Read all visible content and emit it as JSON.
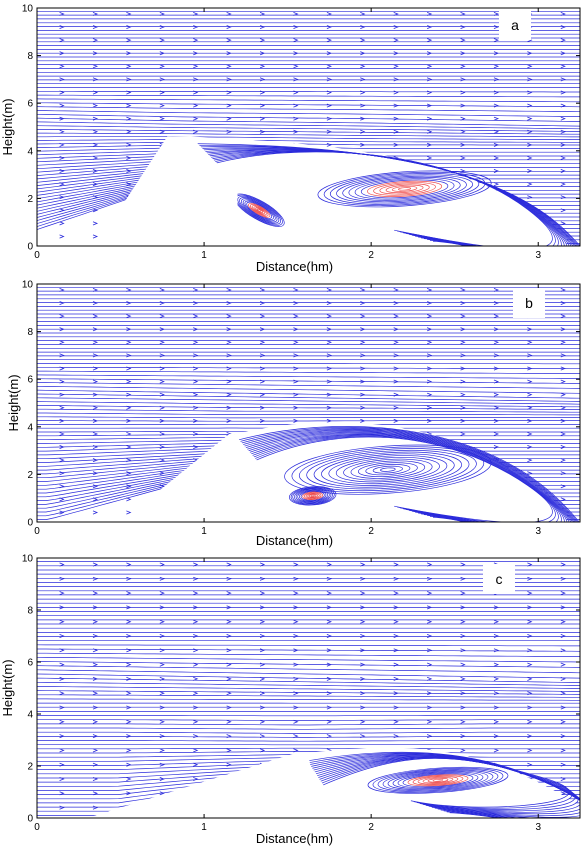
{
  "chart_data": [
    {
      "type": "streamline",
      "panel": "a",
      "xlabel": "Distance(hm)",
      "ylabel": "Height(m)",
      "xlim": [
        0,
        3.25
      ],
      "ylim": [
        0,
        10
      ],
      "xticks": [
        "0",
        "1",
        "2",
        "3"
      ],
      "yticks": [
        "0",
        "2",
        "4",
        "6",
        "8",
        "10"
      ],
      "obstacle": {
        "apex": [
          [
            0.78,
            4.6
          ],
          [
            0.92,
            4.6
          ]
        ],
        "left_base": 0.35,
        "right_base": 1.2,
        "right_base_height": 2.6
      },
      "shear_layer_height": 5.4,
      "vortices": [
        {
          "center": [
            1.33,
            1.5
          ],
          "rx": 0.17,
          "ry": 0.7,
          "highlight": true
        },
        {
          "center": [
            2.2,
            2.4
          ],
          "rx": 0.52,
          "ry": 1.3,
          "highlight": true
        }
      ]
    },
    {
      "type": "streamline",
      "panel": "b",
      "xlabel": "Distance(hm)",
      "ylabel": "Height(m)",
      "xlim": [
        0,
        3.25
      ],
      "ylim": [
        0,
        10
      ],
      "xticks": [
        "0",
        "1",
        "2",
        "3"
      ],
      "yticks": [
        "0",
        "2",
        "4",
        "6",
        "8",
        "10"
      ],
      "obstacle": {
        "apex": [
          [
            1.15,
            3.7
          ],
          [
            1.18,
            3.7
          ]
        ],
        "left_base": 0.5,
        "right_base": 1.45,
        "right_base_height": 1.5
      },
      "shear_layer_height": 5.5,
      "vortices": [
        {
          "center": [
            1.65,
            1.1
          ],
          "rx": 0.14,
          "ry": 0.7,
          "highlight": true
        },
        {
          "center": [
            2.1,
            2.2
          ],
          "rx": 0.62,
          "ry": 1.8,
          "highlight": false
        }
      ]
    },
    {
      "type": "streamline",
      "panel": "c",
      "xlabel": "Distance(hm)",
      "ylabel": "Height(m)",
      "xlim": [
        0,
        3.25
      ],
      "ylim": [
        0,
        10
      ],
      "xticks": [
        "0",
        "1",
        "2",
        "3"
      ],
      "yticks": [
        "0",
        "2",
        "4",
        "6",
        "8",
        "10"
      ],
      "obstacle": {
        "apex": [
          [
            1.55,
            2.5
          ],
          [
            1.62,
            2.5
          ]
        ],
        "left_base": 0.3,
        "right_base": 1.7,
        "right_base_height": 0.2
      },
      "shear_layer_height": 5.6,
      "vortices": [
        {
          "center": [
            2.4,
            1.45
          ],
          "rx": 0.42,
          "ry": 0.85,
          "highlight": true
        }
      ]
    }
  ],
  "colors": {
    "streamline": "#2b2bdb",
    "highlight": "#ee4b4b",
    "frame": "#000000"
  }
}
